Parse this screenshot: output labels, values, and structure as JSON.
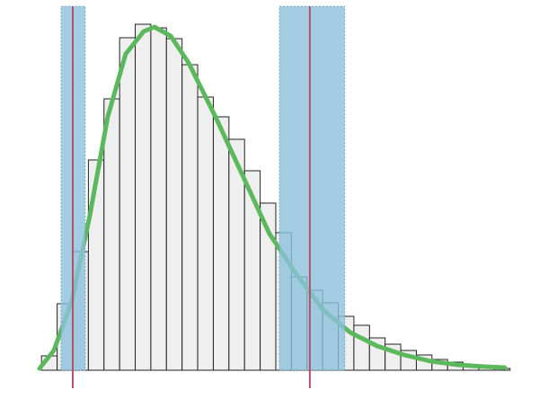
{
  "chart_data": {
    "type": "histogram",
    "bins": [
      0,
      1,
      2,
      3,
      4,
      5,
      6,
      7,
      8,
      9,
      10,
      11,
      12,
      13,
      14,
      15,
      16,
      17,
      18,
      19,
      20,
      21,
      22,
      23,
      24,
      25,
      26,
      27,
      28,
      29,
      30
    ],
    "counts": [
      16,
      74,
      132,
      234,
      302,
      370,
      385,
      381,
      369,
      340,
      304,
      282,
      257,
      222,
      186,
      153,
      104,
      89,
      75,
      60,
      50,
      36,
      29,
      22,
      17,
      12,
      9,
      6,
      4,
      2
    ],
    "color": "#efefef",
    "edgecolor": "#222222",
    "xlim": [
      -0.3,
      30.3
    ],
    "ylim": [
      0,
      400
    ],
    "curve": {
      "color": "#5cb85c",
      "x": [
        -0.13,
        0.79,
        1.94,
        3.09,
        4.24,
        5.39,
        6.54,
        7.23,
        8.27,
        9.42,
        11.14,
        12.87,
        14.59,
        16.32,
        18.04,
        19.77,
        21.49,
        23.22,
        24.94,
        26.67,
        28.39,
        29.66
      ],
      "y": [
        2,
        22,
        77,
        172,
        282,
        352,
        377,
        382,
        372,
        342,
        282,
        217,
        152,
        107,
        67,
        42,
        27,
        17,
        10,
        6,
        4,
        3
      ]
    },
    "spans": [
      {
        "x": [
          1.25,
          2.8
        ],
        "color": "#8cc0dc"
      },
      {
        "x": [
          15.23,
          19.42
        ],
        "color": "#8cc0dc"
      }
    ],
    "vlines": [
      {
        "x": 2.0,
        "color": "#b5506b"
      },
      {
        "x": 17.18,
        "color": "#b5506b"
      }
    ]
  }
}
